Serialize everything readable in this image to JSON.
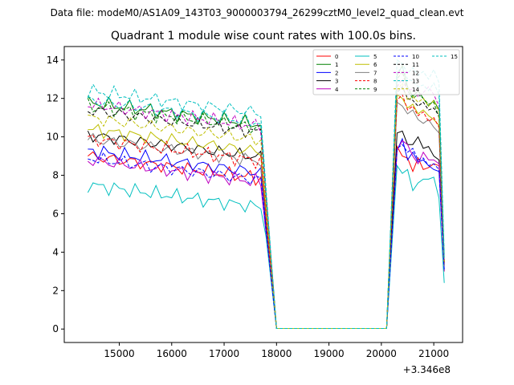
{
  "suptitle": "Data file: modeM0/AS1A09_143T03_9000003794_26299cztM0_level2_quad_clean.evt",
  "chart_data": {
    "type": "line",
    "title": "Quadrant 1 module wise count rates with 100.0s bins.",
    "xlabel": "",
    "ylabel": "",
    "x_offset_label": "+3.346e8",
    "xlim": [
      13950,
      21550
    ],
    "ylim": [
      -0.7,
      14.7
    ],
    "xticks": [
      15000,
      16000,
      17000,
      18000,
      19000,
      20000,
      21000
    ],
    "yticks": [
      0,
      2,
      4,
      6,
      8,
      10,
      12,
      14
    ],
    "grid": false,
    "legend_position": "top-right",
    "segment1": {
      "x_start": 14400,
      "x_step": 100,
      "count": 35
    },
    "gap_zero": {
      "x": [
        18000,
        20100
      ],
      "value": 0.03
    },
    "segment2": {
      "x": [
        20300,
        20400,
        20500,
        20600,
        20700,
        20800,
        20900,
        21000,
        21100,
        21200
      ]
    },
    "series": [
      {
        "name": "0",
        "color": "#ff0000",
        "dash": "solid",
        "base1": 7.8,
        "dip": 5.6,
        "seg2": [
          9.5,
          9.0,
          8.9,
          8.2,
          8.9,
          8.3,
          8.4,
          8.6,
          8.5,
          3.0
        ]
      },
      {
        "name": "1",
        "color": "#008000",
        "dash": "solid",
        "base1": 10.6,
        "dip": 7.0,
        "seg2": [
          13.2,
          13.7,
          12.6,
          12.1,
          12.4,
          12.0,
          11.6,
          11.9,
          11.4,
          3.5
        ]
      },
      {
        "name": "2",
        "color": "#0000ff",
        "dash": "solid",
        "base1": 8.1,
        "dip": 5.2,
        "seg2": [
          9.3,
          9.9,
          8.8,
          9.2,
          8.7,
          8.8,
          8.5,
          8.3,
          8.2,
          3.1
        ]
      },
      {
        "name": "3",
        "color": "#000000",
        "dash": "solid",
        "base1": 8.9,
        "dip": 5.6,
        "seg2": [
          10.2,
          10.3,
          9.6,
          9.6,
          10.0,
          9.4,
          9.5,
          9.0,
          8.8,
          3.3
        ]
      },
      {
        "name": "4",
        "color": "#bf00bf",
        "dash": "solid",
        "base1": 7.6,
        "dip": 5.0,
        "seg2": [
          9.3,
          9.8,
          9.6,
          9.0,
          8.6,
          9.2,
          8.8,
          8.8,
          8.6,
          3.0
        ]
      },
      {
        "name": "5",
        "color": "#00bfbf",
        "dash": "solid",
        "base1": 6.3,
        "dip": 4.8,
        "seg2": [
          8.5,
          8.1,
          8.3,
          7.2,
          7.6,
          7.8,
          7.8,
          7.9,
          6.8,
          2.4
        ]
      },
      {
        "name": "6",
        "color": "#bfbf00",
        "dash": "solid",
        "base1": 9.2,
        "dip": 6.2,
        "seg2": [
          12.2,
          12.0,
          11.5,
          11.7,
          11.2,
          11.4,
          11.1,
          10.9,
          10.6,
          3.4
        ]
      },
      {
        "name": "7",
        "color": "#808080",
        "dash": "solid",
        "base1": 8.7,
        "dip": 5.7,
        "seg2": [
          11.8,
          11.6,
          11.2,
          11.4,
          10.9,
          10.7,
          10.9,
          10.5,
          10.2,
          3.3
        ]
      },
      {
        "name": "8",
        "color": "#ff0000",
        "dash": "dashed",
        "base1": 8.7,
        "dip": 5.8,
        "seg2": [
          11.9,
          12.2,
          11.4,
          11.6,
          11.1,
          11.3,
          10.8,
          11.0,
          10.5,
          3.4
        ]
      },
      {
        "name": "9",
        "color": "#008000",
        "dash": "dashed",
        "base1": 10.4,
        "dip": 6.8,
        "seg2": [
          13.0,
          13.4,
          12.4,
          12.0,
          12.2,
          12.0,
          11.7,
          11.8,
          11.0,
          3.5
        ]
      },
      {
        "name": "10",
        "color": "#0000ff",
        "dash": "dashed",
        "base1": 7.7,
        "dip": 5.1,
        "seg2": [
          9.4,
          9.6,
          9.2,
          9.4,
          8.8,
          8.9,
          8.5,
          8.6,
          8.3,
          3.1
        ]
      },
      {
        "name": "11",
        "color": "#000000",
        "dash": "dashed",
        "base1": 10.2,
        "dip": 6.6,
        "seg2": [
          12.3,
          12.6,
          12.0,
          11.9,
          11.6,
          11.8,
          11.4,
          11.5,
          11.1,
          3.5
        ]
      },
      {
        "name": "12",
        "color": "#bf00bf",
        "dash": "dashed",
        "base1": 10.5,
        "dip": 6.9,
        "seg2": [
          12.6,
          13.0,
          12.4,
          12.5,
          12.1,
          12.3,
          12.6,
          12.2,
          11.6,
          3.6
        ]
      },
      {
        "name": "13",
        "color": "#00bfbf",
        "dash": "dashed",
        "base1": 11.2,
        "dip": 7.3,
        "seg2": [
          14.0,
          13.8,
          13.3,
          13.6,
          13.2,
          13.4,
          13.0,
          13.5,
          12.8,
          3.9
        ]
      },
      {
        "name": "14",
        "color": "#bfbf00",
        "dash": "dashed",
        "base1": 9.8,
        "dip": 6.4,
        "seg2": [
          12.4,
          12.8,
          11.9,
          12.1,
          11.8,
          12.0,
          11.6,
          11.9,
          11.3,
          3.5
        ]
      },
      {
        "name": "15",
        "color": "#00bfbf",
        "dash": "dashed",
        "base1": 10.7,
        "dip": 7.0,
        "seg2": [
          13.4,
          13.6,
          13.0,
          12.9,
          12.6,
          12.7,
          12.4,
          12.8,
          12.2,
          3.7
        ]
      }
    ]
  }
}
